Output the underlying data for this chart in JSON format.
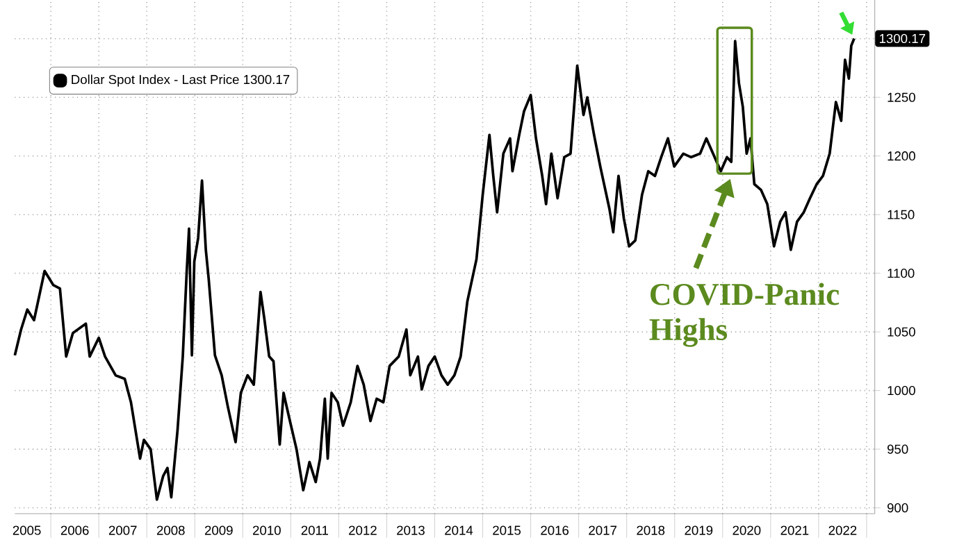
{
  "chart_data": {
    "type": "line",
    "x": [
      2005.25,
      2005.38,
      2005.51,
      2005.65,
      2005.87,
      2006.05,
      2006.19,
      2006.32,
      2006.46,
      2006.73,
      2006.81,
      2007.0,
      2007.13,
      2007.35,
      2007.54,
      2007.67,
      2007.86,
      2007.94,
      2008.08,
      2008.21,
      2008.34,
      2008.43,
      2008.51,
      2008.64,
      2008.75,
      2008.83,
      2008.88,
      2008.94,
      2008.99,
      2009.07,
      2009.15,
      2009.23,
      2009.29,
      2009.42,
      2009.56,
      2009.69,
      2009.85,
      2009.96,
      2010.1,
      2010.23,
      2010.37,
      2010.45,
      2010.55,
      2010.64,
      2010.77,
      2010.85,
      2010.96,
      2011.12,
      2011.26,
      2011.39,
      2011.52,
      2011.61,
      2011.71,
      2011.77,
      2011.85,
      2011.98,
      2012.09,
      2012.25,
      2012.39,
      2012.52,
      2012.66,
      2012.79,
      2012.93,
      2013.06,
      2013.25,
      2013.41,
      2013.49,
      2013.65,
      2013.73,
      2013.87,
      2014.0,
      2014.14,
      2014.27,
      2014.41,
      2014.54,
      2014.68,
      2014.87,
      2015.0,
      2015.14,
      2015.22,
      2015.3,
      2015.43,
      2015.57,
      2015.62,
      2015.76,
      2015.86,
      2016.0,
      2016.11,
      2016.24,
      2016.32,
      2016.43,
      2016.56,
      2016.7,
      2016.83,
      2016.97,
      2017.1,
      2017.18,
      2017.32,
      2017.45,
      2017.64,
      2017.72,
      2017.83,
      2017.94,
      2018.05,
      2018.18,
      2018.32,
      2018.45,
      2018.59,
      2018.72,
      2018.86,
      2018.99,
      2019.18,
      2019.34,
      2019.53,
      2019.66,
      2019.8,
      2019.96,
      2020.09,
      2020.18,
      2020.26,
      2020.34,
      2020.42,
      2020.5,
      2020.58,
      2020.66,
      2020.8,
      2020.93,
      2021.07,
      2021.2,
      2021.31,
      2021.42,
      2021.55,
      2021.69,
      2021.82,
      2021.96,
      2022.09,
      2022.23,
      2022.36,
      2022.47,
      2022.55,
      2022.63,
      2022.68,
      2022.74
    ],
    "series": [
      {
        "name": "Dollar Spot Index - Last Price 1300.17",
        "color": "#000000",
        "values": [
          1030,
          1052,
          1069,
          1060,
          1102,
          1090,
          1087,
          1029,
          1049,
          1057,
          1029,
          1045,
          1029,
          1013,
          1010,
          990,
          942,
          958,
          950,
          907,
          927,
          934,
          909,
          966,
          1029,
          1100,
          1138,
          1030,
          1110,
          1130,
          1179,
          1120,
          1095,
          1030,
          1013,
          986,
          956,
          998,
          1013,
          1005,
          1084,
          1061,
          1029,
          1025,
          954,
          998,
          978,
          950,
          915,
          939,
          922,
          942,
          993,
          942,
          998,
          990,
          970,
          990,
          1021,
          1005,
          974,
          993,
          990,
          1021,
          1029,
          1052,
          1013,
          1029,
          1001,
          1021,
          1029,
          1013,
          1005,
          1013,
          1029,
          1076,
          1112,
          1167,
          1218,
          1183,
          1152,
          1202,
          1215,
          1187,
          1218,
          1238,
          1252,
          1215,
          1183,
          1159,
          1202,
          1164,
          1199,
          1202,
          1277,
          1235,
          1250,
          1218,
          1191,
          1155,
          1135,
          1183,
          1147,
          1123,
          1128,
          1167,
          1187,
          1183,
          1199,
          1215,
          1191,
          1202,
          1199,
          1202,
          1215,
          1202,
          1187,
          1199,
          1195,
          1298,
          1262,
          1242,
          1202,
          1215,
          1176,
          1171,
          1159,
          1123,
          1144,
          1152,
          1120,
          1144,
          1152,
          1164,
          1176,
          1183,
          1202,
          1246,
          1230,
          1282,
          1266,
          1294,
          1300.17
        ]
      }
    ],
    "xlim": [
      2005.25,
      2023.17
    ],
    "ylim": [
      895,
      1333
    ],
    "xticks": [
      {
        "value": 2005.5,
        "label": "2005"
      },
      {
        "value": 2006,
        "label": null
      },
      {
        "value": 2006.5,
        "label": "2006"
      },
      {
        "value": 2007,
        "label": null
      },
      {
        "value": 2007.5,
        "label": "2007"
      },
      {
        "value": 2008,
        "label": null
      },
      {
        "value": 2008.5,
        "label": "2008"
      },
      {
        "value": 2009,
        "label": null
      },
      {
        "value": 2009.5,
        "label": "2009"
      },
      {
        "value": 2010,
        "label": null
      },
      {
        "value": 2010.5,
        "label": "2010"
      },
      {
        "value": 2011,
        "label": null
      },
      {
        "value": 2011.5,
        "label": "2011"
      },
      {
        "value": 2012,
        "label": null
      },
      {
        "value": 2012.5,
        "label": "2012"
      },
      {
        "value": 2013,
        "label": null
      },
      {
        "value": 2013.5,
        "label": "2013"
      },
      {
        "value": 2014,
        "label": null
      },
      {
        "value": 2014.5,
        "label": "2014"
      },
      {
        "value": 2015,
        "label": null
      },
      {
        "value": 2015.5,
        "label": "2015"
      },
      {
        "value": 2016,
        "label": null
      },
      {
        "value": 2016.5,
        "label": "2016"
      },
      {
        "value": 2017,
        "label": null
      },
      {
        "value": 2017.5,
        "label": "2017"
      },
      {
        "value": 2018,
        "label": null
      },
      {
        "value": 2018.5,
        "label": "2018"
      },
      {
        "value": 2019,
        "label": null
      },
      {
        "value": 2019.5,
        "label": "2019"
      },
      {
        "value": 2020,
        "label": null
      },
      {
        "value": 2020.5,
        "label": "2020"
      },
      {
        "value": 2021,
        "label": null
      },
      {
        "value": 2021.5,
        "label": "2021"
      },
      {
        "value": 2022,
        "label": null
      },
      {
        "value": 2022.5,
        "label": "2022"
      },
      {
        "value": 2023,
        "label": null
      }
    ],
    "yticks": [
      900,
      950,
      1000,
      1050,
      1100,
      1150,
      1200,
      1250,
      {
        "value": 1300,
        "label": null
      }
    ],
    "grid": true,
    "legend": "top left",
    "annotations": [
      {
        "text": "1300.17",
        "x": 2022.74,
        "y": 1300.17
      },
      "COVID-Panic Highs"
    ]
  }
}
